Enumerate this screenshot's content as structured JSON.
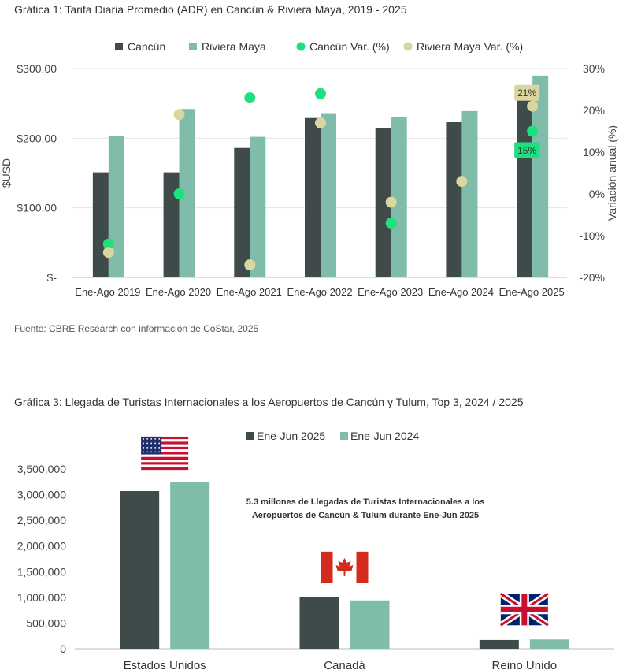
{
  "chart_data": [
    {
      "type": "bar",
      "title": "Gráfica 1: Tarifa Diaria Promedio (ADR) en Cancún & Riviera Maya, 2019 - 2025",
      "categories": [
        "Ene-Ago 2019",
        "Ene-Ago 2020",
        "Ene-Ago 2021",
        "Ene-Ago 2022",
        "Ene-Ago 2023",
        "Ene-Ago 2024",
        "Ene-Ago 2025"
      ],
      "series": [
        {
          "name": "Cancún",
          "kind": "bar",
          "axis": "left",
          "color": "#3f4b4a",
          "values": [
            151,
            151,
            186,
            229,
            214,
            223,
            260
          ]
        },
        {
          "name": "Riviera Maya",
          "kind": "bar",
          "axis": "left",
          "color": "#7fbcaa",
          "values": [
            203,
            242,
            202,
            236,
            231,
            239,
            290
          ]
        },
        {
          "name": "Cancún Var. (%)",
          "kind": "scatter",
          "axis": "right",
          "color": "#1ee07f",
          "values": [
            -12,
            0,
            23,
            24,
            -7,
            3,
            15
          ]
        },
        {
          "name": "Riviera Maya Var. (%)",
          "kind": "scatter",
          "axis": "right",
          "color": "#d9d6a0",
          "values": [
            -14,
            19,
            -17,
            17,
            -2,
            3,
            21
          ]
        }
      ],
      "ylabel": "$USD",
      "y2label": "Variación anual (%)",
      "ylim": [
        0,
        300
      ],
      "y2lim": [
        -20,
        30
      ],
      "yticks": [
        "$-",
        "$100.00",
        "$200.00",
        "$300.00"
      ],
      "y2ticks": [
        "-20%",
        "-10%",
        "0%",
        "10%",
        "20%",
        "30%"
      ],
      "annotations": [
        {
          "text": "21%",
          "series": "Riviera Maya Var. (%)",
          "category": "Ene-Ago 2025",
          "bg": "#d9d6a0"
        },
        {
          "text": "15%",
          "series": "Cancún Var. (%)",
          "category": "Ene-Ago 2025",
          "bg": "#1ee07f"
        }
      ],
      "legend_position": "top",
      "source": "Fuente: CBRE Research con información de CoStar, 2025"
    },
    {
      "type": "bar",
      "title": "Gráfica 3: Llegada de Turistas Internacionales a los Aeropuertos de Cancún y Tulum, Top 3, 2024 / 2025",
      "categories": [
        "Estados Unidos",
        "Canadá",
        "Reino Unido"
      ],
      "series": [
        {
          "name": "Ene-Jun 2025",
          "color": "#3f4b4a",
          "values": [
            3070000,
            1000000,
            170000
          ]
        },
        {
          "name": "Ene-Jun 2024",
          "color": "#7fbcaa",
          "values": [
            3240000,
            940000,
            180000
          ]
        }
      ],
      "ylim": [
        0,
        3500000
      ],
      "yticks": [
        "0",
        "500,000",
        "1,000,000",
        "1,500,000",
        "2,000,000",
        "2,500,000",
        "3,000,000",
        "3,500,000"
      ],
      "annotation": [
        "5.3 millones de Llegadas de Turistas Internacionales a los",
        "Aeropuertos de Cancún & Tulum durante Ene-Jun 2025"
      ],
      "flags": [
        "us-flag-icon",
        "canada-flag-icon",
        "uk-flag-icon"
      ],
      "legend_position": "top"
    }
  ]
}
